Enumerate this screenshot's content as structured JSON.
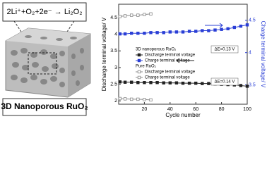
{
  "diagram": {
    "equation": "2Li⁺+O₂+2e⁻ → Li₂O₂",
    "label": "3D Nanoporous RuO₂"
  },
  "chart_data": {
    "type": "line",
    "xlabel": "Cycle number",
    "ylabel": "Discharge terminal voltage/ V",
    "y2label": "Charge terminal voltage/ V",
    "xlim": [
      0,
      100
    ],
    "xticks": [
      20,
      40,
      60,
      80,
      100
    ],
    "ylim": [
      1.9,
      4.9
    ],
    "yticks": [
      2.0,
      2.5,
      3.0,
      3.5,
      4.0,
      4.5
    ],
    "y2lim": [
      3.2,
      4.75
    ],
    "y2ticks": [
      3.5,
      4.0,
      4.5
    ],
    "legend_groups": [
      "3D nanoporous RuO₂",
      "Pure RuO₂"
    ],
    "annotations": [
      "ΔE=0.13 V",
      "ΔE=0.14 V"
    ],
    "series": [
      {
        "name": "Discharge terminal voltage",
        "group": 0,
        "color": "#222222",
        "marker": "filled",
        "x": [
          1,
          5,
          10,
          15,
          20,
          25,
          30,
          35,
          40,
          45,
          50,
          55,
          60,
          65,
          70,
          75,
          80,
          85,
          90,
          95,
          100
        ],
        "values": [
          2.57,
          2.56,
          2.56,
          2.55,
          2.55,
          2.55,
          2.55,
          2.54,
          2.54,
          2.54,
          2.53,
          2.53,
          2.53,
          2.52,
          2.52,
          2.51,
          2.5,
          2.49,
          2.48,
          2.46,
          2.44
        ]
      },
      {
        "name": "Charge terminal voltage",
        "group": 0,
        "color": "#2a3fd6",
        "marker": "filled",
        "axis": "y2",
        "x": [
          1,
          5,
          10,
          15,
          20,
          25,
          30,
          35,
          40,
          45,
          50,
          55,
          60,
          65,
          70,
          75,
          80,
          85,
          90,
          95,
          100
        ],
        "values": [
          4.29,
          4.29,
          4.3,
          4.3,
          4.3,
          4.31,
          4.31,
          4.31,
          4.32,
          4.32,
          4.32,
          4.33,
          4.33,
          4.34,
          4.34,
          4.35,
          4.36,
          4.37,
          4.39,
          4.41,
          4.43
        ]
      },
      {
        "name": "Discharge terminal voltage",
        "group": 1,
        "color": "#8a8a8a",
        "marker": "open",
        "x": [
          1,
          5,
          10,
          15,
          20,
          25
        ],
        "values": [
          2.07,
          2.06,
          2.05,
          2.05,
          2.04,
          2.03
        ]
      },
      {
        "name": "Charge terminal voltage",
        "group": 1,
        "color": "#8a8a8a",
        "marker": "open",
        "axis": "y2",
        "x": [
          1,
          5,
          10,
          15,
          20,
          25
        ],
        "values": [
          4.56,
          4.57,
          4.58,
          4.58,
          4.59,
          4.6
        ]
      }
    ]
  }
}
